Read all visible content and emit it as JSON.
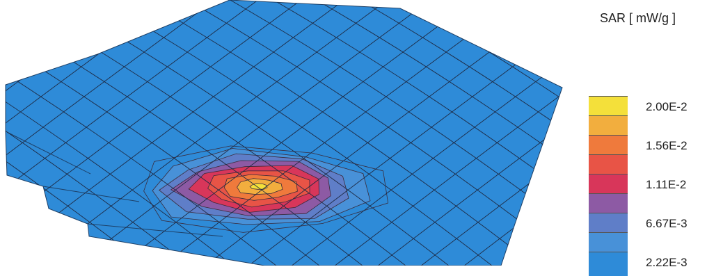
{
  "chart_data": {
    "type": "heatmap",
    "title": "",
    "legend": {
      "title": "SAR [ mW/g ]",
      "placement": "right",
      "levels": [
        {
          "label": "2.00E-2",
          "value": 0.02,
          "color": "#f4e03a"
        },
        {
          "label": "",
          "value": 0.0178,
          "color": "#f2ae3e"
        },
        {
          "label": "1.56E-2",
          "value": 0.0156,
          "color": "#ef7a3c"
        },
        {
          "label": "",
          "value": 0.0133,
          "color": "#e85446"
        },
        {
          "label": "1.11E-2",
          "value": 0.0111,
          "color": "#d8365a"
        },
        {
          "label": "",
          "value": 0.0089,
          "color": "#8d5aa4"
        },
        {
          "label": "6.67E-3",
          "value": 0.00667,
          "color": "#5f7ec8"
        },
        {
          "label": "",
          "value": 0.00444,
          "color": "#4891d8"
        },
        {
          "label": "2.22E-3",
          "value": 0.00222,
          "color": "#2e8bd8"
        }
      ]
    },
    "peak_value": 0.02,
    "background_value": 0.00222
  }
}
